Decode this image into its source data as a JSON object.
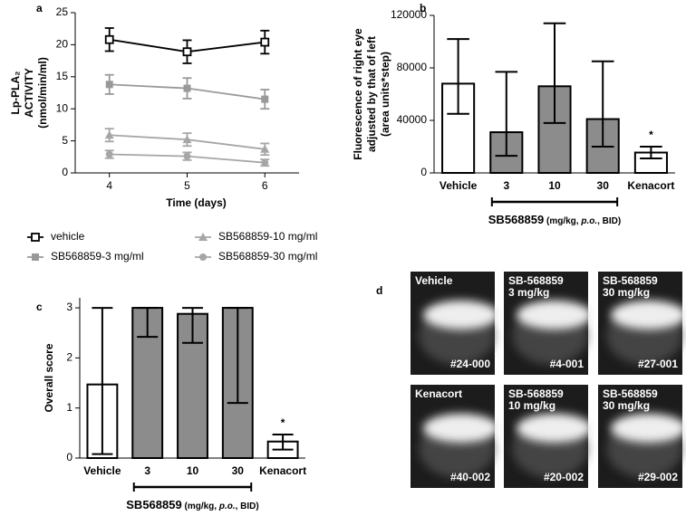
{
  "chart_data": [
    {
      "type": "line",
      "panel_label": "a",
      "ylabel": [
        "Lp-PLA₂",
        "ACTIVITY",
        "(nmol/min/ml)"
      ],
      "xlabel": "Time (days)",
      "x": [
        4,
        5,
        6
      ],
      "xlim": [
        3.56,
        6.44
      ],
      "xticks": [
        4,
        5,
        6
      ],
      "ylim": [
        0,
        25
      ],
      "yticks": [
        0,
        5,
        10,
        15,
        20,
        25
      ],
      "legend": "below",
      "series": [
        {
          "name": "vehicle",
          "color": "#000000",
          "marker": "square-open",
          "values": [
            20.8,
            18.9,
            20.4
          ],
          "errors": [
            1.8,
            1.8,
            1.8
          ]
        },
        {
          "name": "SB568859-3 mg/ml",
          "color": "#999999",
          "marker": "square",
          "values": [
            13.8,
            13.2,
            11.5
          ],
          "errors": [
            1.5,
            1.6,
            1.5
          ]
        },
        {
          "name": "SB568859-10 mg/ml",
          "color": "#a6a6a6",
          "marker": "triangle",
          "values": [
            5.9,
            5.2,
            3.7
          ],
          "errors": [
            1.0,
            1.0,
            0.9
          ]
        },
        {
          "name": "SB568859-30 mg/ml",
          "color": "#a6a6a6",
          "marker": "circle",
          "values": [
            2.9,
            2.6,
            1.6
          ],
          "errors": [
            0.6,
            0.6,
            0.5
          ]
        }
      ]
    },
    {
      "type": "bar",
      "panel_label": "b",
      "ylabel": [
        "Fluorescence of right eye",
        "adjusted by that of left",
        "(area units*step)"
      ],
      "categories": [
        "Vehicle",
        "3",
        "10",
        "30",
        "Kenacort"
      ],
      "values": [
        68000,
        31000,
        66000,
        41000,
        15500
      ],
      "lower": [
        45000,
        13000,
        38000,
        20000,
        11000
      ],
      "upper": [
        102000,
        77000,
        114000,
        85000,
        20000
      ],
      "colors": [
        "#ffffff",
        "#8c8c8c",
        "#8c8c8c",
        "#8c8c8c",
        "#ffffff"
      ],
      "significance": [
        null,
        null,
        null,
        null,
        "*"
      ],
      "group_label": [
        "SB568859",
        " (mg/kg, ",
        "p.o.",
        ", BID)"
      ],
      "ylim": [
        0,
        120000
      ],
      "yticks": [
        0,
        40000,
        80000,
        120000
      ]
    },
    {
      "type": "bar",
      "panel_label": "c",
      "ylabel": [
        "Overall score"
      ],
      "categories": [
        "Vehicle",
        "3",
        "10",
        "30",
        "Kenacort"
      ],
      "values": [
        1.47,
        3,
        2.88,
        3,
        0.33
      ],
      "lower": [
        0.08,
        2.42,
        2.3,
        1.1,
        0.17
      ],
      "upper": [
        3,
        3,
        3,
        3,
        0.47
      ],
      "colors": [
        "#ffffff",
        "#8c8c8c",
        "#8c8c8c",
        "#8c8c8c",
        "#ffffff"
      ],
      "significance": [
        null,
        null,
        null,
        null,
        "*"
      ],
      "group_label": [
        "SB568859",
        " (mg/kg, ",
        "p.o.",
        ", BID)"
      ],
      "ylim": [
        0,
        3.2
      ],
      "yticks": [
        0,
        1,
        2,
        3
      ]
    }
  ],
  "panel_d": {
    "label": "d",
    "images": [
      {
        "lines": [
          "Vehicle"
        ],
        "id": "#24-000"
      },
      {
        "lines": [
          "SB-568859",
          "3 mg/kg"
        ],
        "id": "#4-001"
      },
      {
        "lines": [
          "SB-568859",
          "30 mg/kg"
        ],
        "id": "#27-001"
      },
      {
        "lines": [
          "Kenacort"
        ],
        "id": "#40-002"
      },
      {
        "lines": [
          "SB-568859",
          "10 mg/kg"
        ],
        "id": "#20-002"
      },
      {
        "lines": [
          "SB-568859",
          "30 mg/kg"
        ],
        "id": "#29-002"
      }
    ]
  }
}
